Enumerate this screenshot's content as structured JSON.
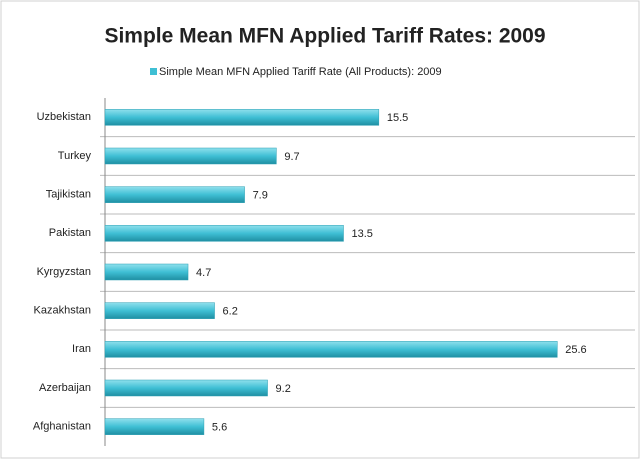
{
  "chart_data": {
    "type": "barh",
    "title": "Simple Mean MFN Applied Tariff Rates: 2009",
    "categories": [
      "Uzbekistan",
      "Turkey",
      "Tajikistan",
      "Pakistan",
      "Kyrgyzstan",
      "Kazakhstan",
      "Iran",
      "Azerbaijan",
      "Afghanistan"
    ],
    "series": [
      {
        "name": "Simple Mean MFN Applied Tariff Rate (All Products): 2009",
        "color": "#3fbfd4",
        "values": [
          15.5,
          9.7,
          7.9,
          13.5,
          4.7,
          6.2,
          25.6,
          9.2,
          5.6
        ]
      }
    ],
    "xlim": [
      0,
      30
    ],
    "legend": "top"
  }
}
